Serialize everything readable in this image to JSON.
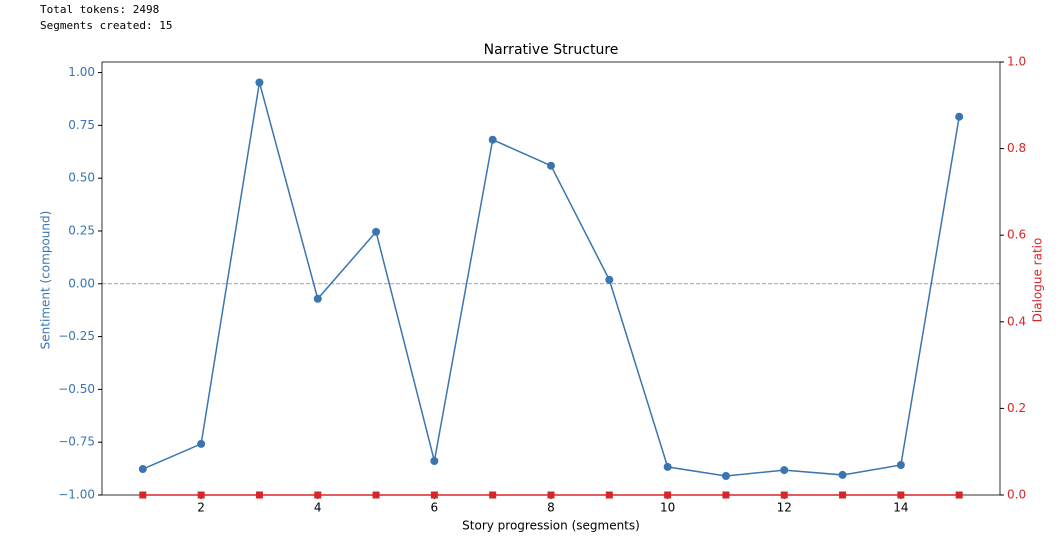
{
  "console": [
    "Total tokens: 2498",
    "Segments created: 15"
  ],
  "chart_data": {
    "type": "line",
    "title": "Narrative Structure",
    "xlabel": "Story progression (segments)",
    "ylabel": "Sentiment (compound)",
    "y2label": "Dialogue ratio",
    "x": [
      1,
      2,
      3,
      4,
      5,
      6,
      7,
      8,
      9,
      10,
      11,
      12,
      13,
      14,
      15
    ],
    "series": [
      {
        "color": "#3b75af",
        "marker": "circle",
        "values": [
          -0.877,
          -0.758,
          0.953,
          -0.071,
          0.246,
          -0.839,
          0.682,
          0.559,
          0.019,
          -0.867,
          -0.91,
          -0.882,
          -0.905,
          -0.858,
          0.791
        ]
      },
      {
        "color": "#d62728",
        "marker": "square",
        "axis": "y2",
        "values": [
          0,
          0,
          0,
          0,
          0,
          0,
          0,
          0,
          0,
          0,
          0,
          0,
          0,
          0,
          0
        ]
      }
    ],
    "hline": 0,
    "xlim": [
      0.3,
      15.7
    ],
    "xticks": [
      2,
      4,
      6,
      8,
      10,
      12,
      14
    ],
    "ylim": [
      -1.0,
      1.05
    ],
    "yticks": [
      {
        "value": -1,
        "label": "−1.00"
      },
      {
        "value": -0.75,
        "label": "−0.75"
      },
      {
        "value": -0.5,
        "label": "−0.50"
      },
      {
        "value": -0.25,
        "label": "−0.25"
      },
      {
        "value": 0,
        "label": "0.00"
      },
      {
        "value": 0.25,
        "label": "0.25"
      },
      {
        "value": 0.5,
        "label": "0.50"
      },
      {
        "value": 0.75,
        "label": "0.75"
      },
      {
        "value": 1,
        "label": "1.00"
      }
    ],
    "y2lim": [
      0,
      1
    ],
    "y2ticks": [
      {
        "value": 0,
        "label": "0.0"
      },
      {
        "value": 0.2,
        "label": "0.2"
      },
      {
        "value": 0.4,
        "label": "0.4"
      },
      {
        "value": 0.6,
        "label": "0.6"
      },
      {
        "value": 0.8,
        "label": "0.8"
      },
      {
        "value": 1,
        "label": "1.0"
      }
    ]
  }
}
